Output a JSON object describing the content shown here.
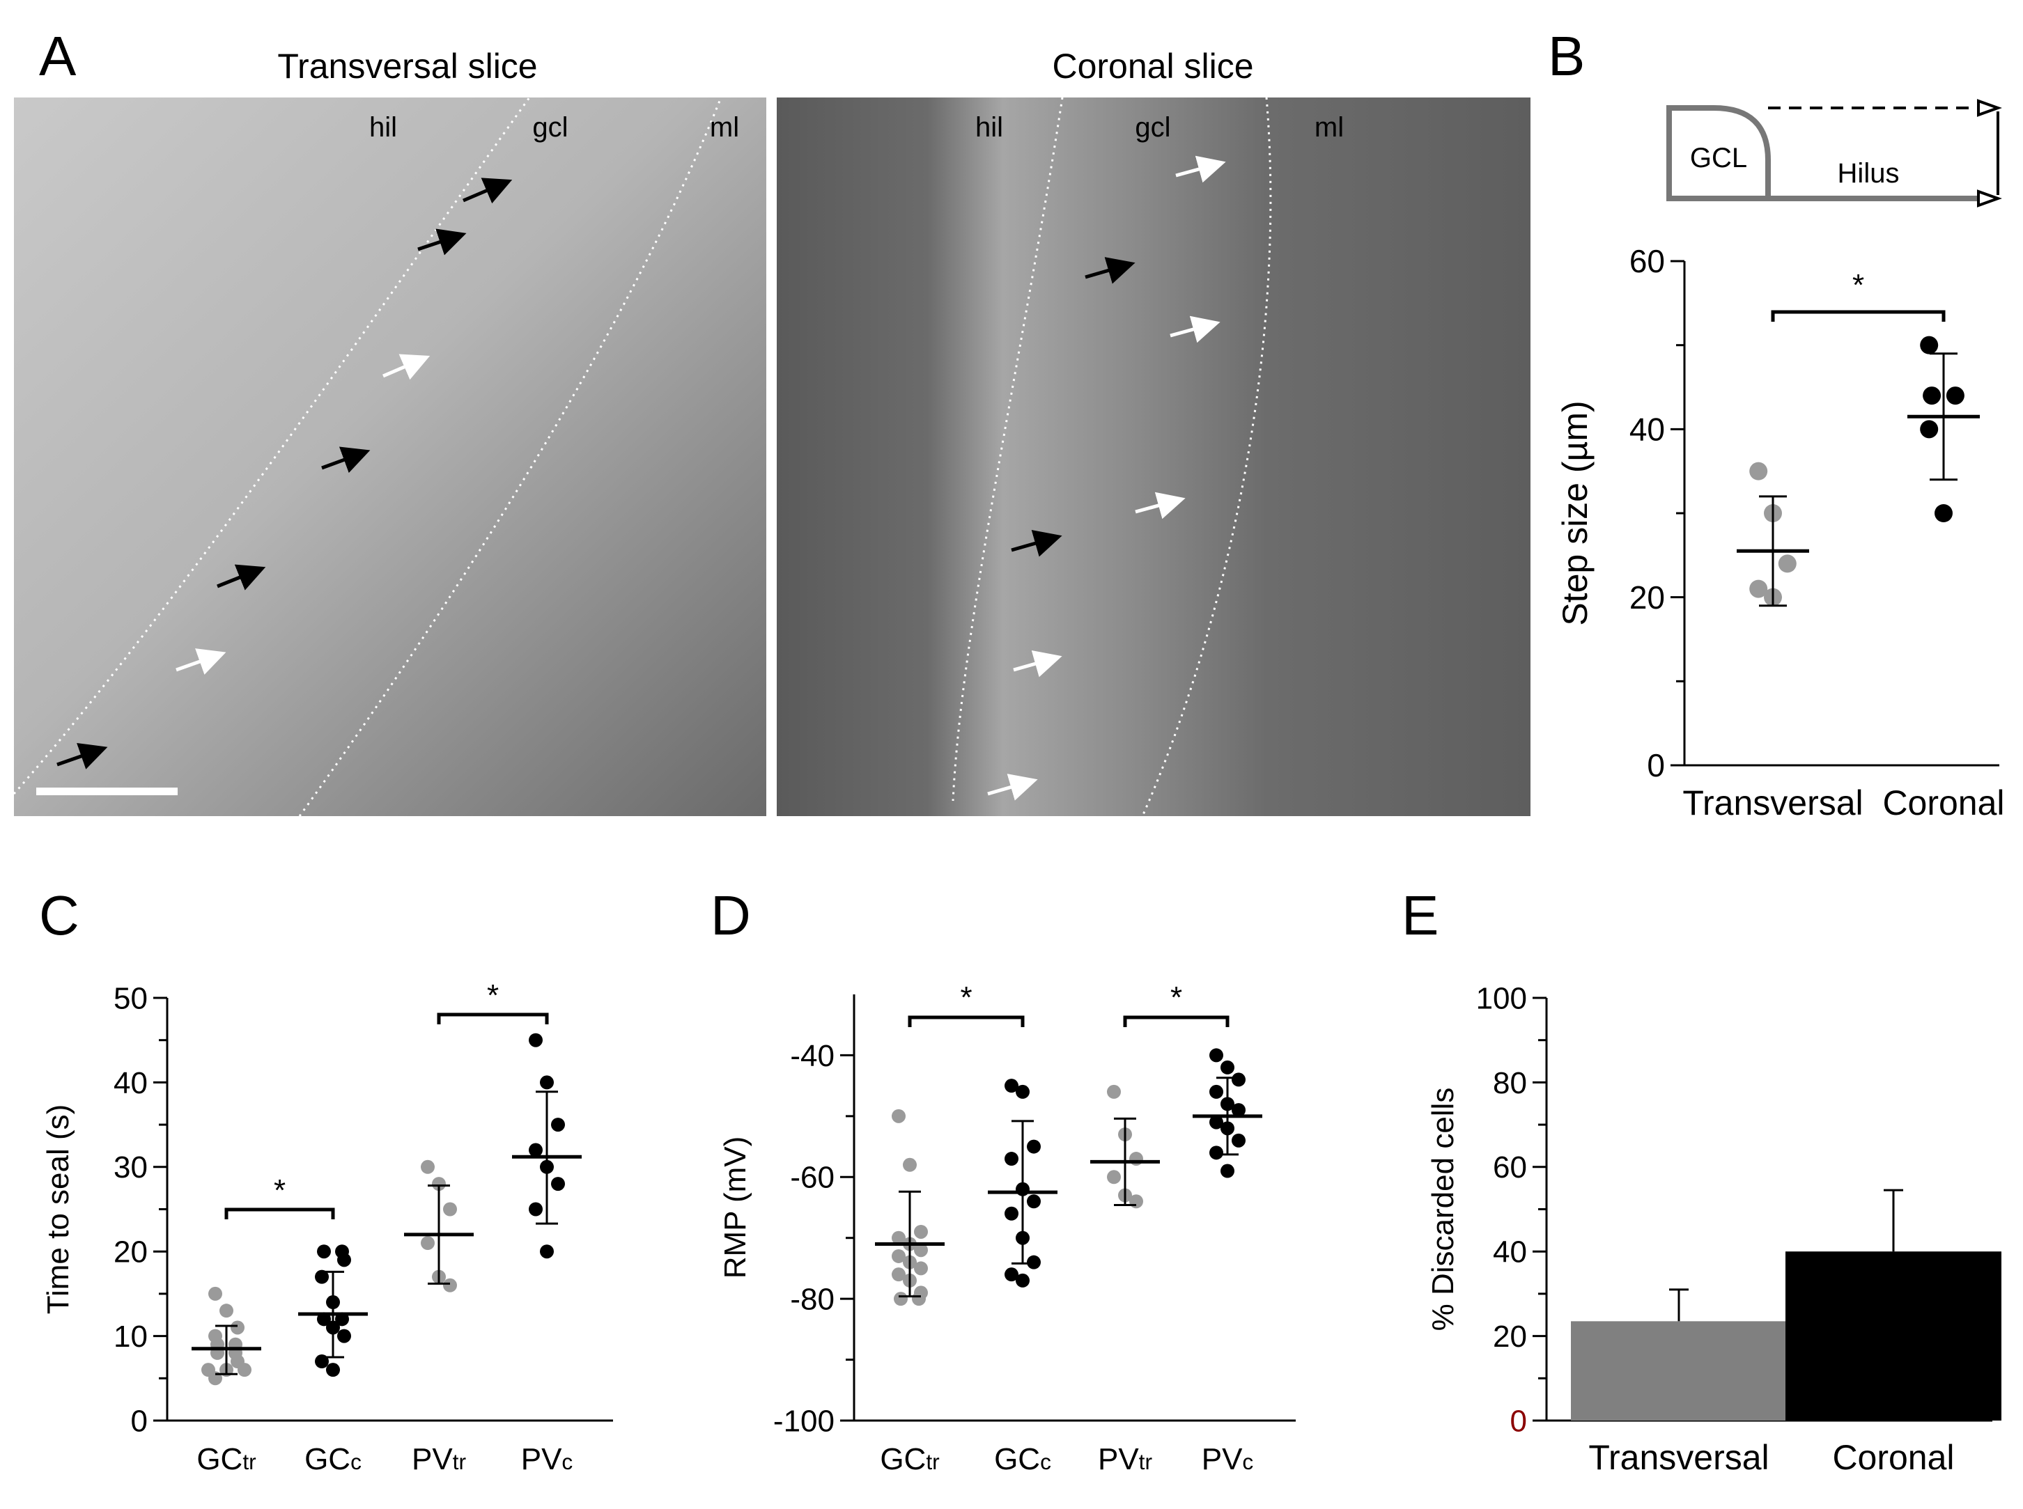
{
  "panel_letters": {
    "a": "A",
    "b": "B",
    "c": "C",
    "d": "D",
    "e": "E"
  },
  "panel_a": {
    "left_title": "Transversal slice",
    "right_title": "Coronal slice",
    "left_labels": {
      "hil": "hil",
      "gcl": "gcl",
      "ml": "ml"
    },
    "right_labels": {
      "hil": "hil",
      "gcl": "gcl",
      "ml": "ml"
    }
  },
  "panel_b_schematic": {
    "gcl": "GCL",
    "hilus": "Hilus"
  },
  "colors": {
    "transversal": "#9a9a9a",
    "coronal": "#000000",
    "tick_zero_e": "#8b0000"
  },
  "chart_data": [
    {
      "id": "B",
      "type": "scatter",
      "categories": [
        "Transversal",
        "Coronal"
      ],
      "ylabel": "Step size (µm)",
      "ylim": [
        0,
        60
      ],
      "yticks": [
        0,
        20,
        40,
        60
      ],
      "significance": [
        {
          "pair": [
            "Transversal",
            "Coronal"
          ],
          "label": "*"
        }
      ],
      "series": [
        {
          "category": "Transversal",
          "color": "gray",
          "points": [
            35,
            30,
            24,
            21,
            20
          ],
          "mean": 25.5,
          "sd_low": 19,
          "sd_high": 32
        },
        {
          "category": "Coronal",
          "color": "black",
          "points": [
            50,
            44,
            44,
            40,
            30
          ],
          "mean": 41.5,
          "sd_low": 34,
          "sd_high": 49
        }
      ]
    },
    {
      "id": "C",
      "type": "scatter",
      "categories": [
        "GCtr",
        "GCc",
        "PVtr",
        "PVc"
      ],
      "ylabel": "Time to seal (s)",
      "ylim": [
        0,
        50
      ],
      "yticks": [
        0,
        10,
        20,
        30,
        40,
        50
      ],
      "significance": [
        {
          "pair": [
            "GCtr",
            "GCc"
          ],
          "label": "*"
        },
        {
          "pair": [
            "PVtr",
            "PVc"
          ],
          "label": "*"
        }
      ],
      "series": [
        {
          "category": "GCtr",
          "color": "gray",
          "points": [
            15,
            13,
            11,
            10,
            9,
            9,
            8,
            8,
            7,
            6,
            6,
            6,
            5
          ],
          "mean": 8.5,
          "sd_low": 5.5,
          "sd_high": 11.2
        },
        {
          "category": "GCc",
          "color": "black",
          "points": [
            20,
            20,
            19,
            17,
            14,
            12,
            12,
            11,
            10,
            7,
            6
          ],
          "mean": 12.6,
          "sd_low": 7.5,
          "sd_high": 17.6
        },
        {
          "category": "PVtr",
          "color": "gray",
          "points": [
            30,
            28,
            25,
            21,
            17,
            16
          ],
          "mean": 22,
          "sd_low": 16.2,
          "sd_high": 27.8
        },
        {
          "category": "PVc",
          "color": "black",
          "points": [
            45,
            40,
            35,
            32,
            30,
            28,
            25,
            20
          ],
          "mean": 31.2,
          "sd_low": 23.3,
          "sd_high": 38.9
        }
      ]
    },
    {
      "id": "D",
      "type": "scatter",
      "categories": [
        "GCtr",
        "GCc",
        "PVtr",
        "PVc"
      ],
      "ylabel": "RMP (mV)",
      "ylim": [
        -100,
        -30
      ],
      "yticks": [
        -100,
        -80,
        -60,
        -40
      ],
      "significance": [
        {
          "pair": [
            "GCtr",
            "GCc"
          ],
          "label": "*"
        },
        {
          "pair": [
            "PVtr",
            "PVc"
          ],
          "label": "*"
        }
      ],
      "series": [
        {
          "category": "GCtr",
          "color": "gray",
          "points": [
            -50,
            -58,
            -69,
            -70,
            -71,
            -72,
            -73,
            -74,
            -75,
            -76,
            -77,
            -79,
            -80,
            -80
          ],
          "mean": -71,
          "sd_low": -79.6,
          "sd_high": -62.4
        },
        {
          "category": "GCc",
          "color": "black",
          "points": [
            -45,
            -46,
            -55,
            -57,
            -62,
            -64,
            -66,
            -70,
            -74,
            -76,
            -77
          ],
          "mean": -62.5,
          "sd_low": -74.2,
          "sd_high": -50.8
        },
        {
          "category": "PVtr",
          "color": "gray",
          "points": [
            -46,
            -53,
            -57,
            -60,
            -63,
            -64
          ],
          "mean": -57.5,
          "sd_low": -64.6,
          "sd_high": -50.4
        },
        {
          "category": "PVc",
          "color": "black",
          "points": [
            -40,
            -42,
            -44,
            -46,
            -48,
            -49,
            -51,
            -52,
            -54,
            -56,
            -59
          ],
          "mean": -50,
          "sd_low": -56.3,
          "sd_high": -43.7
        }
      ]
    },
    {
      "id": "E",
      "type": "bar",
      "categories": [
        "Transversal",
        "Coronal"
      ],
      "values": [
        23.5,
        40
      ],
      "errors": [
        7.5,
        14.5
      ],
      "ylabel": "% Discarded cells",
      "ylim": [
        0,
        100
      ],
      "yticks": [
        0,
        20,
        40,
        60,
        80,
        100
      ]
    }
  ]
}
